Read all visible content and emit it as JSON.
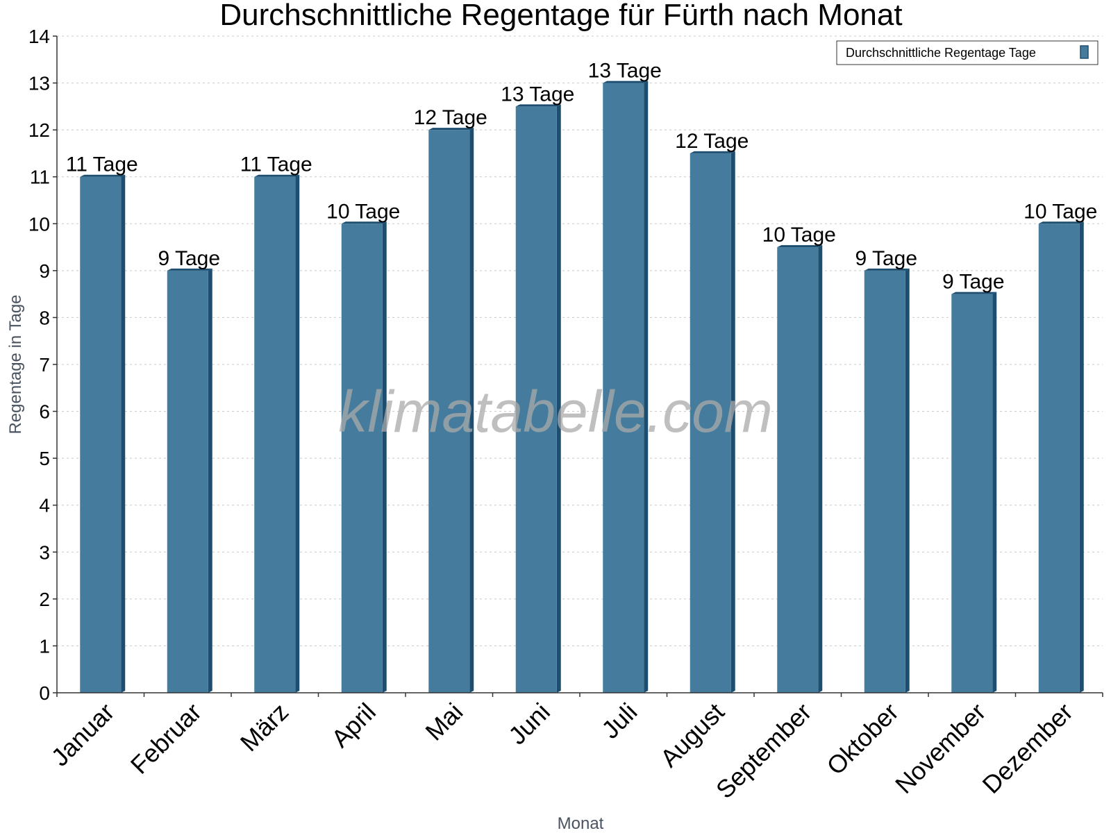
{
  "chart_data": {
    "type": "bar",
    "title": "Durchschnittliche Regentage für Fürth nach Monat",
    "xlabel": "Monat",
    "ylabel": "Regentage in Tage",
    "ylim": [
      0,
      14
    ],
    "yticks": [
      0,
      1,
      2,
      3,
      4,
      5,
      6,
      7,
      8,
      9,
      10,
      11,
      12,
      13,
      14
    ],
    "grid": true,
    "legend_position": "top-right",
    "categories": [
      "Januar",
      "Februar",
      "März",
      "April",
      "Mai",
      "Juni",
      "Juli",
      "August",
      "September",
      "Oktober",
      "November",
      "Dezember"
    ],
    "series": [
      {
        "name": "Durchschnittliche Regentage Tage",
        "color": "#457b9d",
        "values": [
          11,
          9,
          11,
          10,
          12,
          12.5,
          13,
          11.5,
          9.5,
          9,
          8.5,
          10
        ],
        "labels": [
          "11 Tage",
          "9 Tage",
          "11 Tage",
          "10 Tage",
          "12 Tage",
          "13 Tage",
          "13 Tage",
          "12 Tage",
          "10 Tage",
          "9 Tage",
          "9 Tage",
          "10 Tage"
        ]
      }
    ]
  },
  "watermark": "klimatabelle.com",
  "colors": {
    "bar_front": "#457b9d",
    "bar_side": "#1d4e6f",
    "bar_top": "#1d4e6f"
  }
}
